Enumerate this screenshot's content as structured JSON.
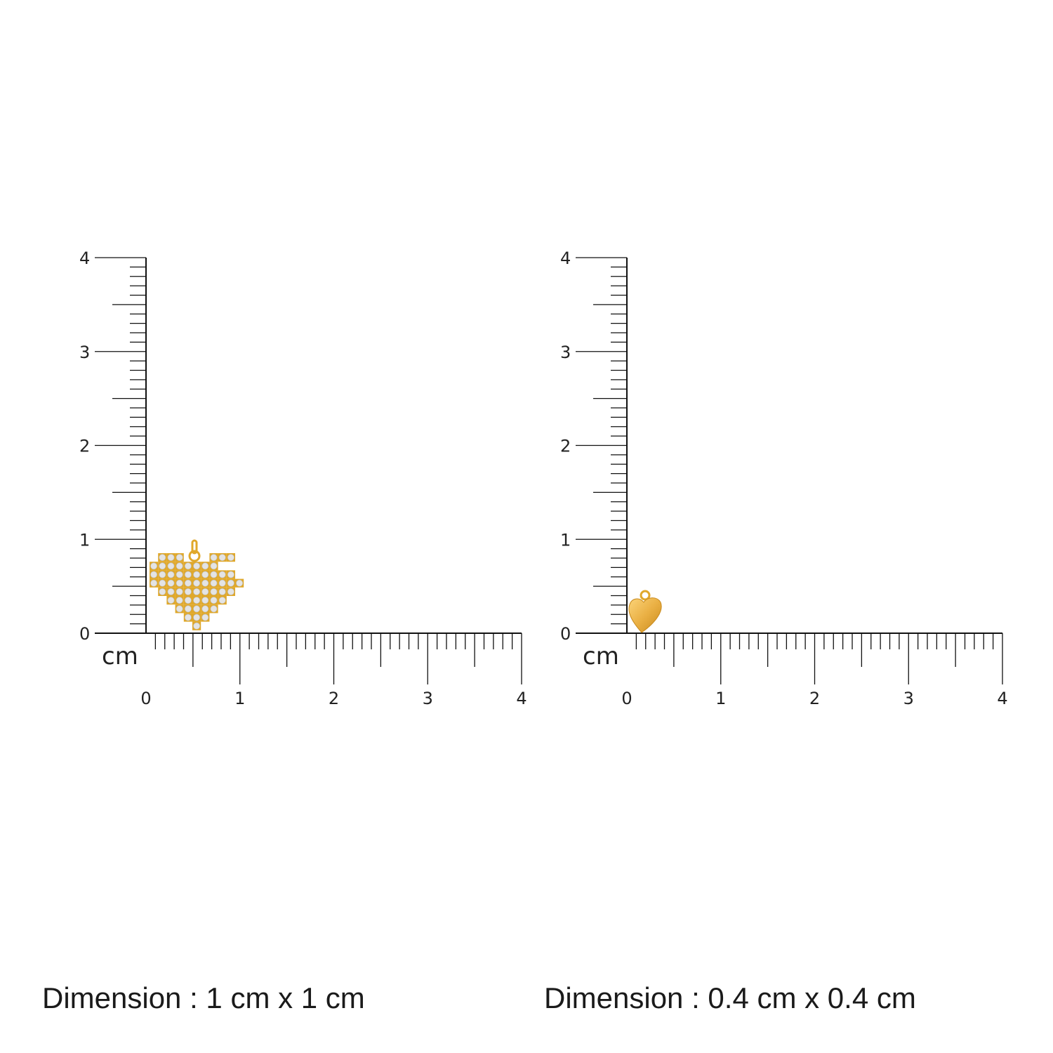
{
  "panels": [
    {
      "unit_label": "cm",
      "x_ticks": [
        "0",
        "1",
        "2",
        "3",
        "4"
      ],
      "y_ticks": [
        "0",
        "1",
        "2",
        "3",
        "4"
      ],
      "item_icon": "pave-pixel-heart-pendant-icon",
      "item_size_cm": [
        1,
        1
      ],
      "dimension_text": "Dimension : 1 cm x 1 cm"
    },
    {
      "unit_label": "cm",
      "x_ticks": [
        "0",
        "1",
        "2",
        "3",
        "4"
      ],
      "y_ticks": [
        "0",
        "1",
        "2",
        "3",
        "4"
      ],
      "item_icon": "gold-puffed-heart-charm-icon",
      "item_size_cm": [
        0.4,
        0.4
      ],
      "dimension_text": "Dimension : 0.4 cm x 0.4 cm"
    }
  ],
  "colors": {
    "gold": "#e0a82a",
    "stone": "#e4e4e4",
    "ruler": "#111111"
  }
}
